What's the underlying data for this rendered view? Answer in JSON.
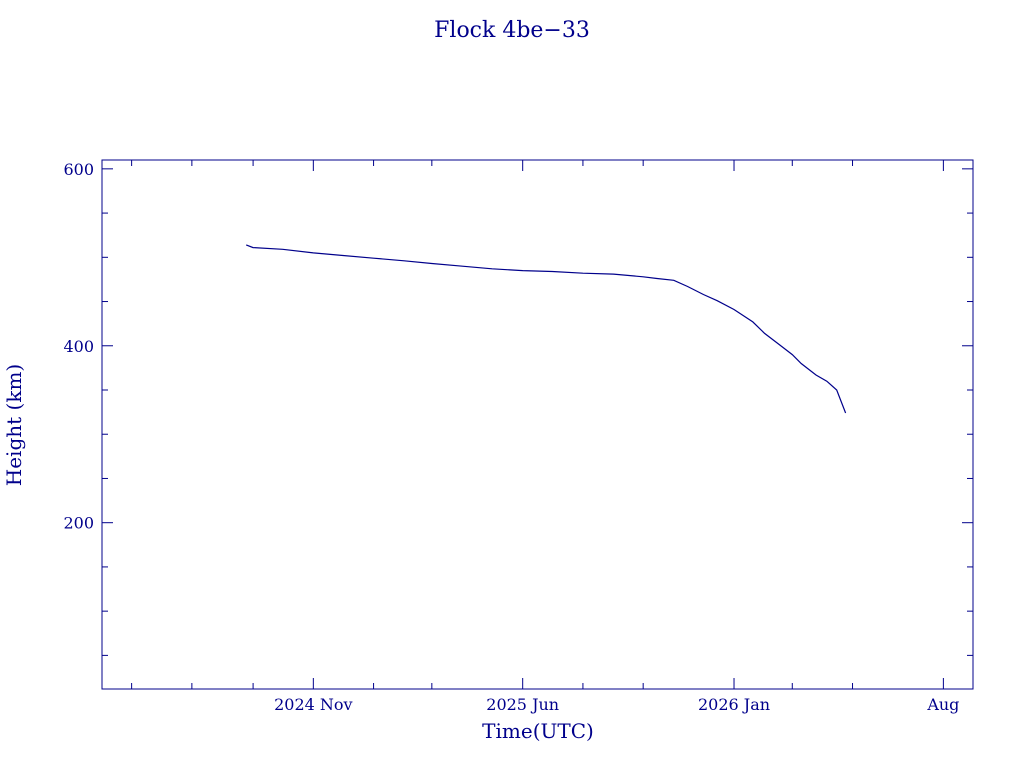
{
  "chart_data": {
    "type": "line",
    "title": "Flock 4be−33",
    "xlabel": "Time(UTC)",
    "ylabel": "Height (km)",
    "color": "#00008b",
    "xlim": [
      "2024-04-01",
      "2026-08-31"
    ],
    "ylim": [
      12,
      610
    ],
    "x_ticks": [
      {
        "date": "2024-11-01",
        "label": "2024 Nov"
      },
      {
        "date": "2025-06-01",
        "label": "2025 Jun"
      },
      {
        "date": "2026-01-01",
        "label": "2026 Jan"
      },
      {
        "date": "2026-08-01",
        "label": "Aug"
      }
    ],
    "x_minor_ticks": [
      "2024-05-01",
      "2024-07-01",
      "2024-09-01",
      "2025-01-01",
      "2025-03-01",
      "2025-08-01",
      "2025-10-01",
      "2026-03-01",
      "2026-05-01"
    ],
    "y_ticks": [
      200,
      400,
      600
    ],
    "y_minor_ticks": [
      50,
      100,
      150,
      250,
      300,
      350,
      450,
      500,
      550
    ],
    "series": [
      {
        "x": [
          "2024-08-25",
          "2024-09-01",
          "2024-10-01",
          "2024-11-01",
          "2024-12-01",
          "2025-01-01",
          "2025-02-01",
          "2025-03-01",
          "2025-04-01",
          "2025-05-01",
          "2025-06-01",
          "2025-07-01",
          "2025-08-01",
          "2025-09-01",
          "2025-10-01",
          "2025-10-15",
          "2025-11-01",
          "2025-11-15",
          "2025-12-01",
          "2025-12-15",
          "2026-01-01",
          "2026-01-20",
          "2026-02-01",
          "2026-02-15",
          "2026-03-01",
          "2026-03-10",
          "2026-03-25",
          "2026-04-05",
          "2026-04-15",
          "2026-04-24"
        ],
        "y": [
          514,
          511,
          509,
          505,
          502,
          499,
          496,
          493,
          490,
          487,
          485,
          484,
          482,
          481,
          478,
          476,
          474,
          467,
          458,
          451,
          441,
          427,
          414,
          402,
          390,
          380,
          367,
          360,
          350,
          324
        ]
      }
    ]
  }
}
